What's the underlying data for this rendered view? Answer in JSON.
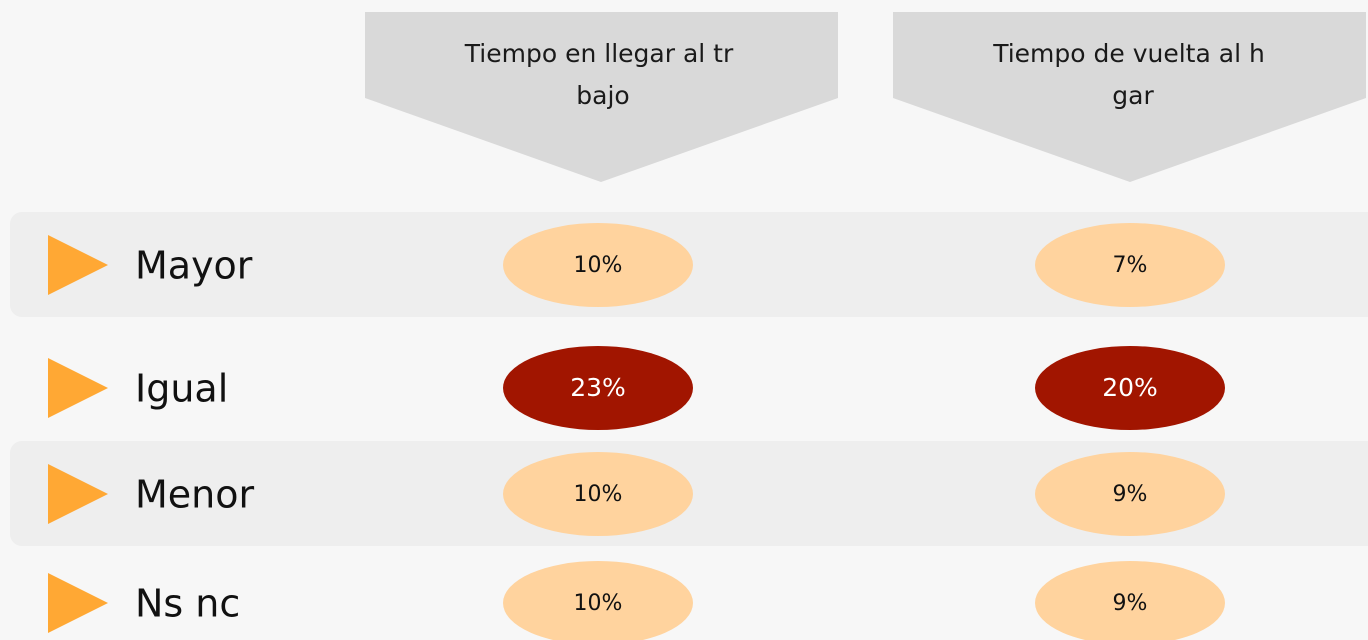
{
  "table": {
    "columns": [
      "Tiempo en llegar al trabajo",
      "Tiempo de vuelta al hogar"
    ],
    "rows": [
      {
        "label": "Mayor",
        "cells": [
          "10%",
          "7%"
        ]
      },
      {
        "label": "Igual",
        "cells": [
          "23%",
          "20%"
        ]
      },
      {
        "label": "Menor",
        "cells": [
          "10%",
          "9%"
        ]
      },
      {
        "label": "Ns nc",
        "cells": [
          "10%",
          "9%"
        ]
      }
    ]
  }
}
